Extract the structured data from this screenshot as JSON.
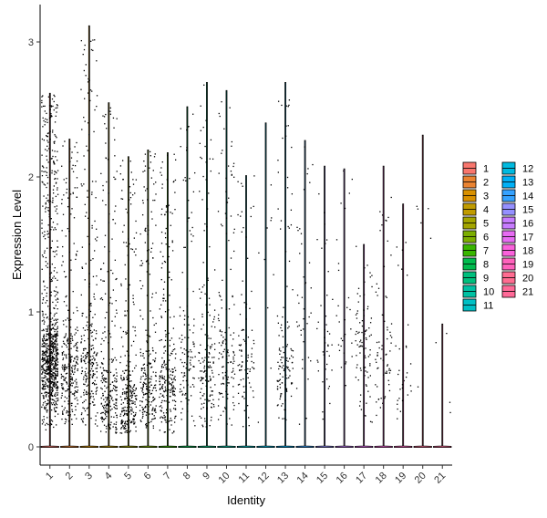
{
  "chart_data": {
    "type": "violin",
    "xlabel": "Identity",
    "ylabel": "Expression Level",
    "ylim": [
      -0.14,
      3.2
    ],
    "yticks": [
      0,
      1,
      2,
      3
    ],
    "grid": false,
    "legend_position": "right",
    "categories": [
      "1",
      "2",
      "3",
      "4",
      "5",
      "6",
      "7",
      "8",
      "9",
      "10",
      "11",
      "12",
      "13",
      "14",
      "15",
      "16",
      "17",
      "18",
      "19",
      "20",
      "21"
    ],
    "colors": [
      "#F8766D",
      "#EA8331",
      "#D89000",
      "#C09B00",
      "#A3A500",
      "#7CAE00",
      "#39B600",
      "#00BB4E",
      "#00BF7D",
      "#00C1A3",
      "#00BFC4",
      "#00BAE0",
      "#00B0F6",
      "#35A2FF",
      "#9590FF",
      "#C77CFF",
      "#E76BF3",
      "#FA62DB",
      "#FF62BC",
      "#FF6C91",
      "#FF6A98"
    ],
    "violin_max": [
      2.62,
      2.28,
      3.12,
      2.55,
      2.15,
      2.2,
      2.18,
      2.52,
      2.7,
      2.64,
      2.01,
      2.4,
      2.7,
      2.27,
      2.08,
      2.06,
      1.5,
      2.08,
      1.8,
      2.31,
      0.91
    ],
    "nonzero_counts": [
      900,
      300,
      280,
      260,
      280,
      240,
      260,
      120,
      160,
      140,
      90,
      10,
      120,
      40,
      40,
      30,
      90,
      70,
      30,
      6,
      4
    ],
    "cluster_centers": [
      0.6,
      0.55,
      0.6,
      0.35,
      0.3,
      0.45,
      0.42,
      0.55,
      0.5,
      0.55,
      0.6,
      1.4,
      0.55,
      1.0,
      0.7,
      0.9,
      0.8,
      0.6,
      0.5,
      1.6,
      0.4
    ],
    "legend": {
      "col1": [
        "1",
        "2",
        "3",
        "4",
        "5",
        "6",
        "7",
        "8",
        "9",
        "10",
        "11"
      ],
      "col2": [
        "12",
        "13",
        "14",
        "15",
        "16",
        "17",
        "18",
        "19",
        "20",
        "21"
      ]
    }
  }
}
